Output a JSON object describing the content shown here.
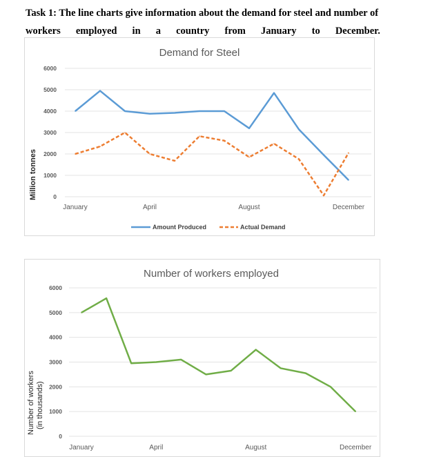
{
  "heading": {
    "line1": "Task 1: The line charts give information about the demand for steel and number of",
    "line2_words": [
      "workers",
      "employed",
      "in",
      "a",
      "country",
      "from",
      "January",
      "to",
      "December."
    ]
  },
  "chart_data": [
    {
      "type": "line",
      "title": "Demand for Steel",
      "ylabel": "Million tonnes",
      "xlabel": "",
      "ylim": [
        0,
        6000
      ],
      "yticks": [
        0,
        1000,
        2000,
        3000,
        4000,
        5000,
        6000
      ],
      "x_tick_labels": [
        {
          "index": 0,
          "label": "January"
        },
        {
          "index": 3,
          "label": "April"
        },
        {
          "index": 7,
          "label": "August"
        },
        {
          "index": 11,
          "label": "December"
        }
      ],
      "grid": true,
      "legend_position": "bottom",
      "series": [
        {
          "name": "Amount Produced",
          "color": "#5b9bd5",
          "style": "solid",
          "values": [
            4000,
            4950,
            4000,
            3880,
            3920,
            4000,
            4000,
            3200,
            4850,
            3150,
            1950,
            780
          ]
        },
        {
          "name": "Actual Demand",
          "color": "#ed7d31",
          "style": "dashed",
          "values": [
            2000,
            2350,
            3000,
            2000,
            1680,
            2830,
            2620,
            1850,
            2480,
            1760,
            60,
            2050
          ]
        }
      ]
    },
    {
      "type": "line",
      "title": "Number of workers employed",
      "ylabel": "Number of workers (in thousands)",
      "ylabel_lines": [
        "Number of workers",
        "(in thousands)"
      ],
      "xlabel": "",
      "ylim": [
        0,
        6000
      ],
      "yticks": [
        0,
        1000,
        2000,
        3000,
        4000,
        5000,
        6000
      ],
      "x_tick_labels": [
        {
          "index": 0,
          "label": "January"
        },
        {
          "index": 3,
          "label": "April"
        },
        {
          "index": 7,
          "label": "August"
        },
        {
          "index": 11,
          "label": "December"
        }
      ],
      "grid": true,
      "series": [
        {
          "color": "#70ad47",
          "style": "solid",
          "values": [
            5000,
            5580,
            2950,
            3000,
            3100,
            2500,
            2650,
            3500,
            2750,
            2550,
            2000,
            1000
          ]
        }
      ]
    }
  ]
}
